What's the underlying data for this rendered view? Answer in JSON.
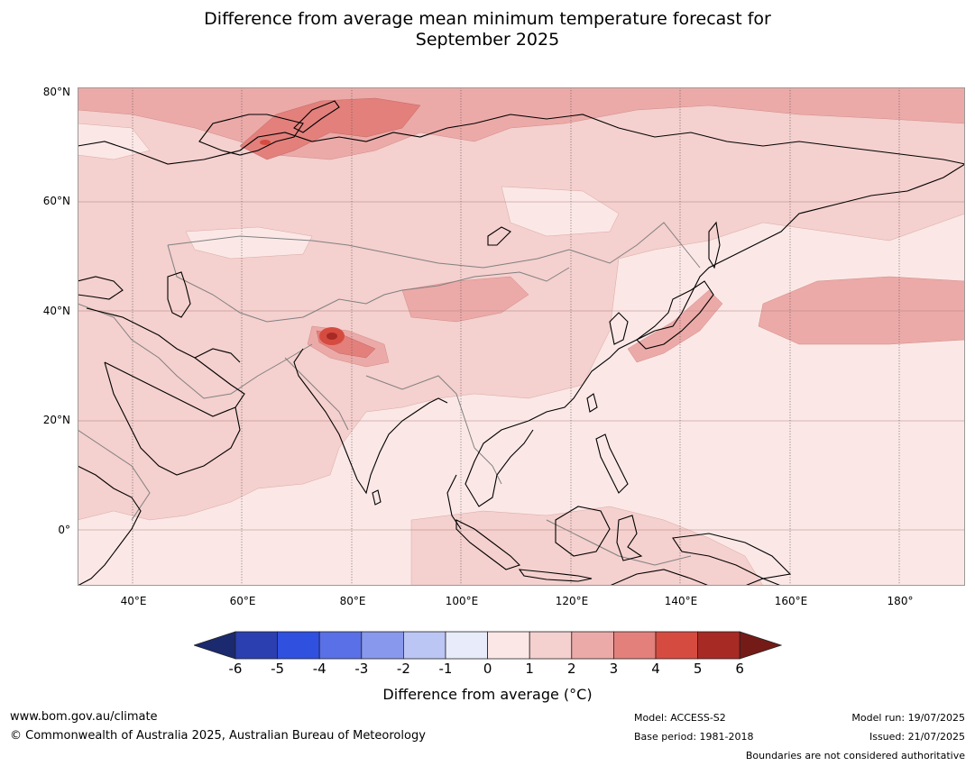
{
  "title_line1": "Difference from average mean minimum temperature forecast for",
  "title_line2": "September 2025",
  "lat_labels": [
    "80°N",
    "60°N",
    "40°N",
    "20°N",
    "0°"
  ],
  "lon_labels": [
    "40°E",
    "60°E",
    "80°E",
    "100°E",
    "120°E",
    "140°E",
    "160°E",
    "180°"
  ],
  "colorbar": {
    "ticks": [
      "-6",
      "-5",
      "-4",
      "-3",
      "-2",
      "-1",
      "0",
      "1",
      "2",
      "3",
      "4",
      "5",
      "6"
    ],
    "colors": [
      "#1b2a6e",
      "#2b3fb0",
      "#3050e0",
      "#5a70e6",
      "#8898ec",
      "#bcc6f4",
      "#e8ecfa",
      "#fbe8e6",
      "#f4d0ce",
      "#ebaaa8",
      "#e3807c",
      "#d64b40",
      "#a82a24",
      "#741b17"
    ],
    "label": "Difference from average (°C)"
  },
  "footer": {
    "website": "www.bom.gov.au/climate",
    "copyright": "© Commonwealth of Australia 2025, Australian Bureau of Meteorology",
    "model": "Model: ACCESS-S2",
    "base_period": "Base period: 1981-2018",
    "model_run": "Model run: 19/07/2025",
    "issued": "Issued: 21/07/2025",
    "disclaimer": "Boundaries are not considered authoritative"
  },
  "map": {
    "lon_range": [
      30,
      192
    ],
    "lat_range": [
      -10,
      80
    ],
    "colors": {
      "c01": "#fbe8e6",
      "c12": "#f4d0ce",
      "c23": "#ebaaa8",
      "c34": "#e3807c",
      "c45": "#d64b40"
    }
  }
}
